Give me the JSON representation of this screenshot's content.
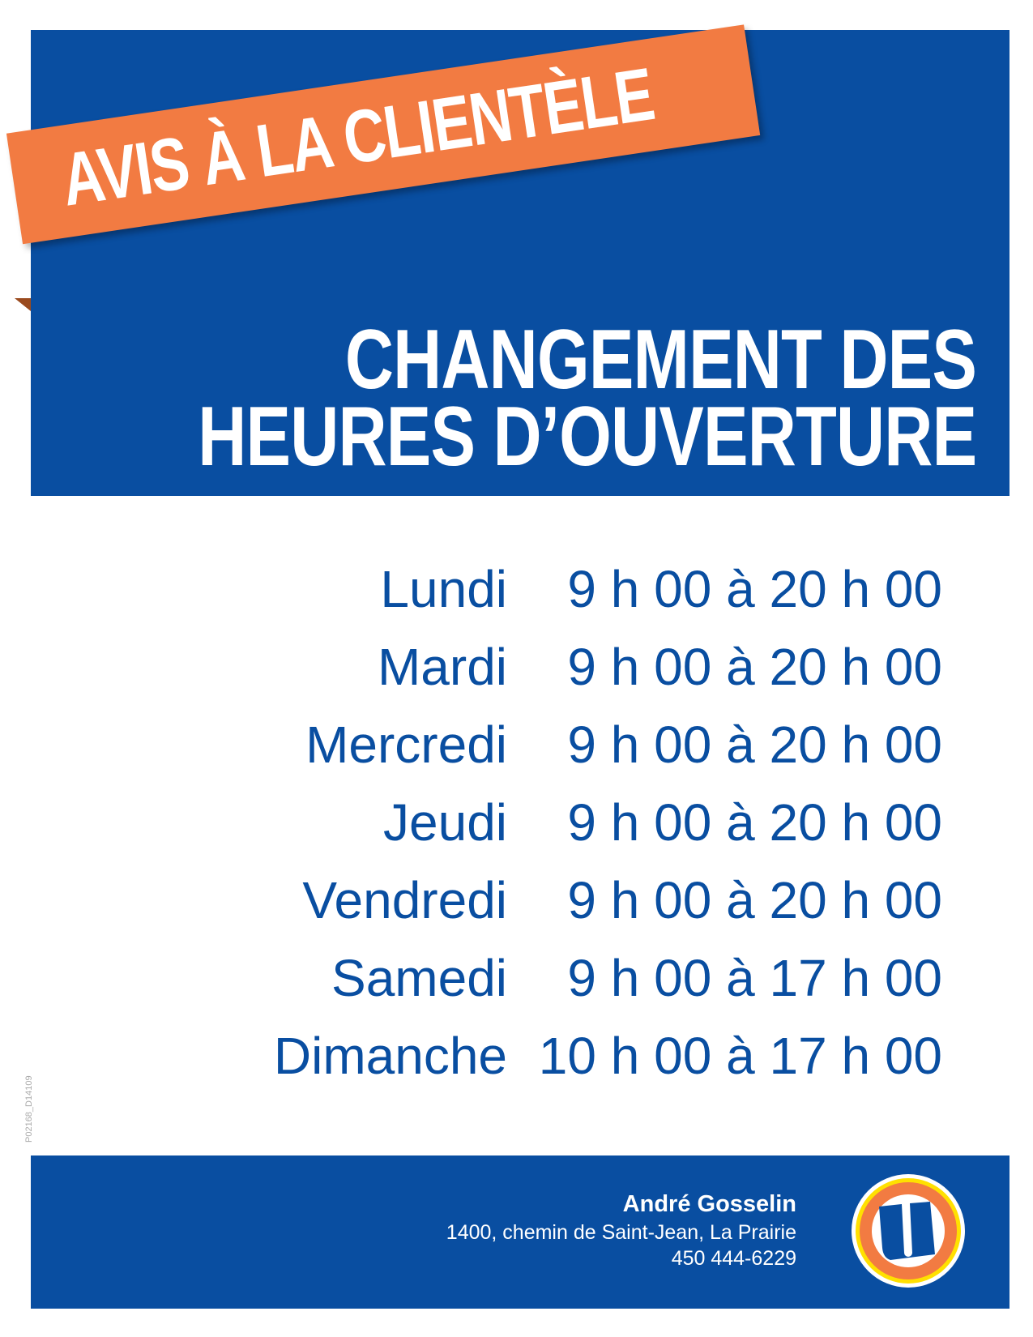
{
  "header": {
    "banner": "AVIS À LA CLIENTÈLE",
    "title_line1": "CHANGEMENT DES",
    "title_line2": "HEURES D’OUVERTURE"
  },
  "schedule": [
    {
      "day": "Lundi",
      "hours": "9 h 00 à 20 h 00"
    },
    {
      "day": "Mardi",
      "hours": "9 h 00 à 20 h 00"
    },
    {
      "day": "Mercredi",
      "hours": "9 h 00 à 20 h 00"
    },
    {
      "day": "Jeudi",
      "hours": "9 h 00 à 20 h 00"
    },
    {
      "day": "Vendredi",
      "hours": "9 h 00 à 20 h 00"
    },
    {
      "day": "Samedi",
      "hours": "9 h 00 à 17 h 00"
    },
    {
      "day": "Dimanche",
      "hours": "10 h 00 à 17 h 00"
    }
  ],
  "print_code": "P02168_D14109",
  "footer": {
    "store_name": "André Gosselin",
    "address": "1400, chemin de Saint-Jean, La Prairie",
    "phone": "450 444-6229",
    "logo": "U"
  },
  "colors": {
    "blue": "#094ea1",
    "orange": "#f27b42",
    "yellow": "#ffe000"
  }
}
